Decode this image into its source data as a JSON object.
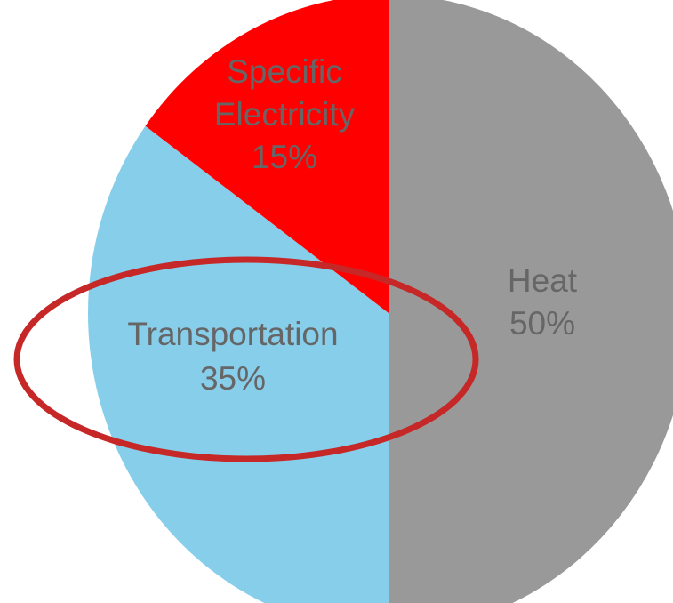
{
  "chart_data": {
    "type": "pie",
    "slices": [
      {
        "label_lines": [
          "Heat"
        ],
        "value": 50,
        "value_label": "50%",
        "color": "#999999"
      },
      {
        "label_lines": [
          "Transportation"
        ],
        "value": 35,
        "value_label": "35%",
        "color": "#87CEEB"
      },
      {
        "label_lines": [
          "Specific",
          "Electricity"
        ],
        "value": 15,
        "value_label": "15%",
        "color": "#FF0000"
      }
    ],
    "highlight": {
      "shape": "ellipse",
      "target": "Transportation",
      "color": "#C62828"
    }
  }
}
